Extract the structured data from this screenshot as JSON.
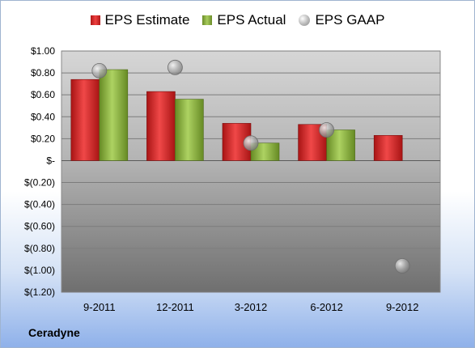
{
  "company": "Ceradyne",
  "legend": {
    "estimate": "EPS Estimate",
    "actual": "EPS Actual",
    "gaap": "EPS GAAP"
  },
  "colors": {
    "estimate": "#d42a2a",
    "actual": "#8cb040",
    "gaap": "#b5b5b5"
  },
  "chart_data": {
    "type": "bar",
    "categories": [
      "9-2011",
      "12-2011",
      "3-2012",
      "6-2012",
      "9-2012"
    ],
    "series": [
      {
        "name": "EPS Estimate",
        "values": [
          0.74,
          0.63,
          0.34,
          0.33,
          0.23
        ]
      },
      {
        "name": "EPS Actual",
        "values": [
          0.83,
          0.56,
          0.16,
          0.28,
          null
        ]
      },
      {
        "name": "EPS GAAP",
        "values": [
          0.82,
          0.85,
          0.16,
          0.28,
          -0.96
        ]
      }
    ],
    "ylim": [
      -1.2,
      1.0
    ],
    "y_ticks": [
      1.0,
      0.8,
      0.6,
      0.4,
      0.2,
      0,
      -0.2,
      -0.4,
      -0.6,
      -0.8,
      -1.0,
      -1.2
    ],
    "y_tick_labels": [
      "$1.00",
      "$0.80",
      "$0.60",
      "$0.40",
      "$0.20",
      "$-",
      "$(0.20)",
      "$(0.40)",
      "$(0.60)",
      "$(0.80)",
      "$(1.00)",
      "$(1.20)"
    ],
    "grid": true,
    "legend_position": "top"
  }
}
